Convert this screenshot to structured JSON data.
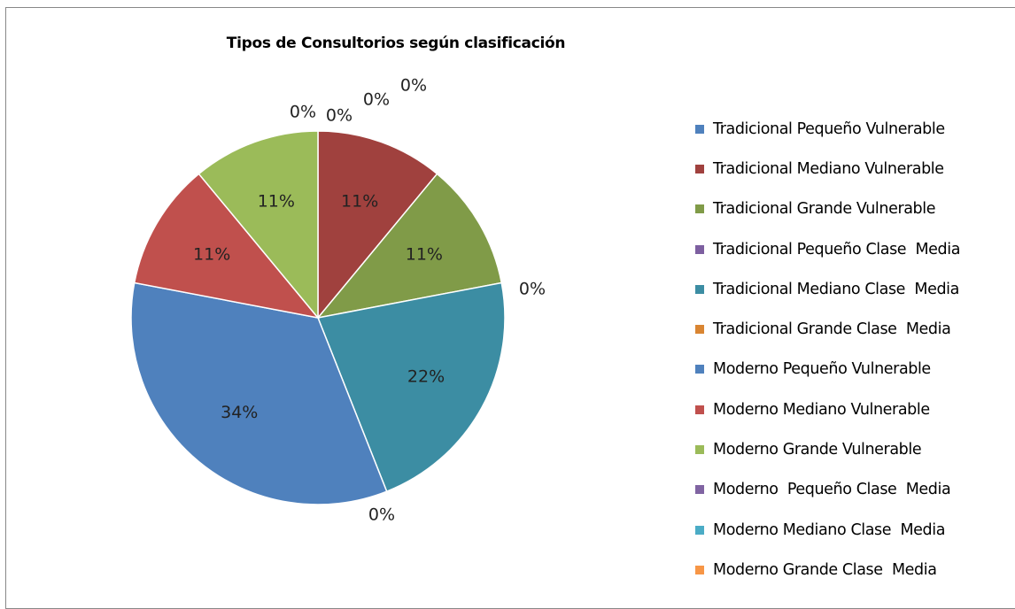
{
  "chart_data": {
    "type": "pie",
    "title": "Tipos de Consultorios según clasificación",
    "legend_position": "right",
    "categories": [
      "Tradicional Pequeño Vulnerable",
      "Tradicional Mediano Vulnerable",
      "Tradicional Grande Vulnerable",
      "Tradicional Pequeño Clase  Media",
      "Tradicional Mediano Clase  Media",
      "Tradicional Grande Clase  Media",
      "Moderno Pequeño Vulnerable",
      "Moderno Mediano Vulnerable",
      "Moderno Grande Vulnerable",
      "Moderno  Pequeño Clase  Media",
      "Moderno Mediano Clase  Media",
      "Moderno Grande Clase  Media"
    ],
    "values": [
      0,
      11,
      11,
      0,
      22,
      0,
      34,
      11,
      11,
      0,
      0,
      0
    ],
    "data_labels": [
      "0%",
      "11%",
      "11%",
      "0%",
      "22%",
      "0%",
      "34%",
      "11%",
      "11%",
      "0%",
      "0%",
      "0%"
    ],
    "colors": [
      "#4F81BD",
      "#A0413E",
      "#809B48",
      "#7D5FA0",
      "#3C8DA3",
      "#D98532",
      "#4F81BD",
      "#C0504D",
      "#9BBB59",
      "#8064A2",
      "#4BACC6",
      "#F79646"
    ]
  }
}
